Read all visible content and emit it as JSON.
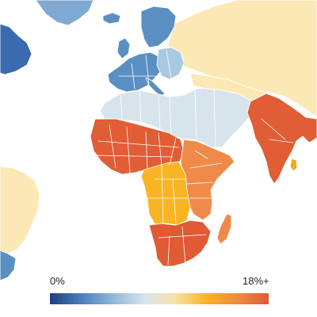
{
  "legend": {
    "min_label": "0%",
    "max_label": "18%+",
    "stops": [
      "#1d3e80",
      "#4a7fbb",
      "#8db6d9",
      "#d6e4ec",
      "#f5e2a8",
      "#f8b423",
      "#f08a3e",
      "#df5a35"
    ]
  },
  "colors": {
    "background": "#ffffff",
    "borders": "#ffffff",
    "north_atlantic_dark": "#3a6aaf",
    "europe_blue": "#5a8fc4",
    "eastern_europe_light_blue": "#a9c8e2",
    "greenland": "#7fa8d3",
    "north_africa_middle_east": "#d7e4eb",
    "russia_asia_americas": "#fbe8b4",
    "central_africa_yellow": "#f8b423",
    "east_africa_orange": "#f08a4a",
    "west_africa_south_asia_red": "#e05d35",
    "southern_africa_red": "#df5a35",
    "sri_lanka": "#f3a91f"
  }
}
